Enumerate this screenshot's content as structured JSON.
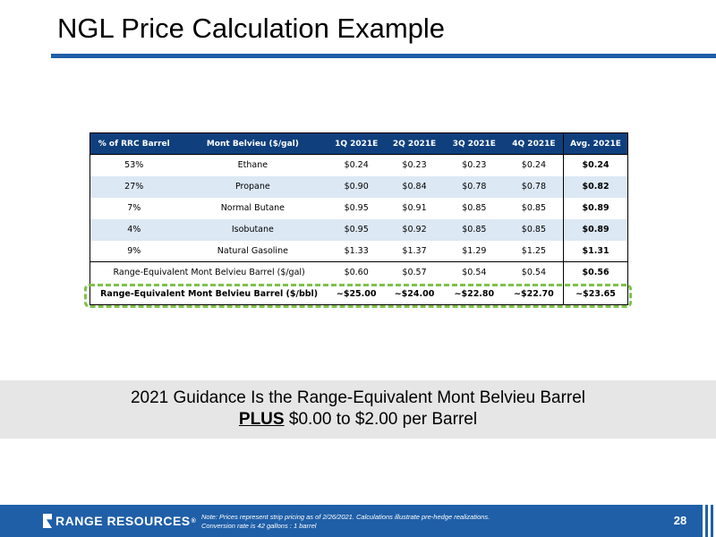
{
  "slide": {
    "title": "NGL Price Calculation Example",
    "page_number": "28"
  },
  "table": {
    "headers": [
      "% of RRC Barrel",
      "Mont Belvieu ($/gal)",
      "1Q 2021E",
      "2Q 2021E",
      "3Q 2021E",
      "4Q 2021E",
      "Avg. 2021E"
    ],
    "rows": [
      {
        "pct": "53%",
        "product": "Ethane",
        "q1": "$0.24",
        "q2": "$0.23",
        "q3": "$0.23",
        "q4": "$0.24",
        "avg": "$0.24"
      },
      {
        "pct": "27%",
        "product": "Propane",
        "q1": "$0.90",
        "q2": "$0.84",
        "q3": "$0.78",
        "q4": "$0.78",
        "avg": "$0.82"
      },
      {
        "pct": "7%",
        "product": "Normal Butane",
        "q1": "$0.95",
        "q2": "$0.91",
        "q3": "$0.85",
        "q4": "$0.85",
        "avg": "$0.89"
      },
      {
        "pct": "4%",
        "product": "Isobutane",
        "q1": "$0.95",
        "q2": "$0.92",
        "q3": "$0.85",
        "q4": "$0.85",
        "avg": "$0.89"
      },
      {
        "pct": "9%",
        "product": "Natural Gasoline",
        "q1": "$1.33",
        "q2": "$1.37",
        "q3": "$1.29",
        "q4": "$1.25",
        "avg": "$1.31"
      }
    ],
    "gal_row": {
      "label": "Range-Equivalent Mont Belvieu Barrel ($/gal)",
      "q1": "$0.60",
      "q2": "$0.57",
      "q3": "$0.54",
      "q4": "$0.54",
      "avg": "$0.56"
    },
    "bbl_row": {
      "label": "Range-Equivalent Mont Belvieu Barrel ($/bbl)",
      "q1": "~$25.00",
      "q2": "~$24.00",
      "q3": "~$22.80",
      "q4": "~$22.70",
      "avg": "~$23.65"
    }
  },
  "guidance": {
    "line1": "2021 Guidance Is the Range-Equivalent Mont Belvieu Barrel",
    "plus_word": "PLUS",
    "line2_rest": " $0.00 to $2.00 per Barrel"
  },
  "footer": {
    "logo_text": "RANGE RESOURCES",
    "logo_reg": "®",
    "note_line1": "Note: Prices represent strip pricing as of 2/26/2021. Calculations illustrate pre-hedge realizations.",
    "note_line2": "Conversion rate is 42 gallons : 1 barrel"
  },
  "colors": {
    "header_bg": "#0f3f7d",
    "accent_blue": "#1f5fa8",
    "row_shade": "#dce8f4",
    "highlight_dash": "#7ec24a",
    "guidance_bg": "#e6e6e6"
  }
}
